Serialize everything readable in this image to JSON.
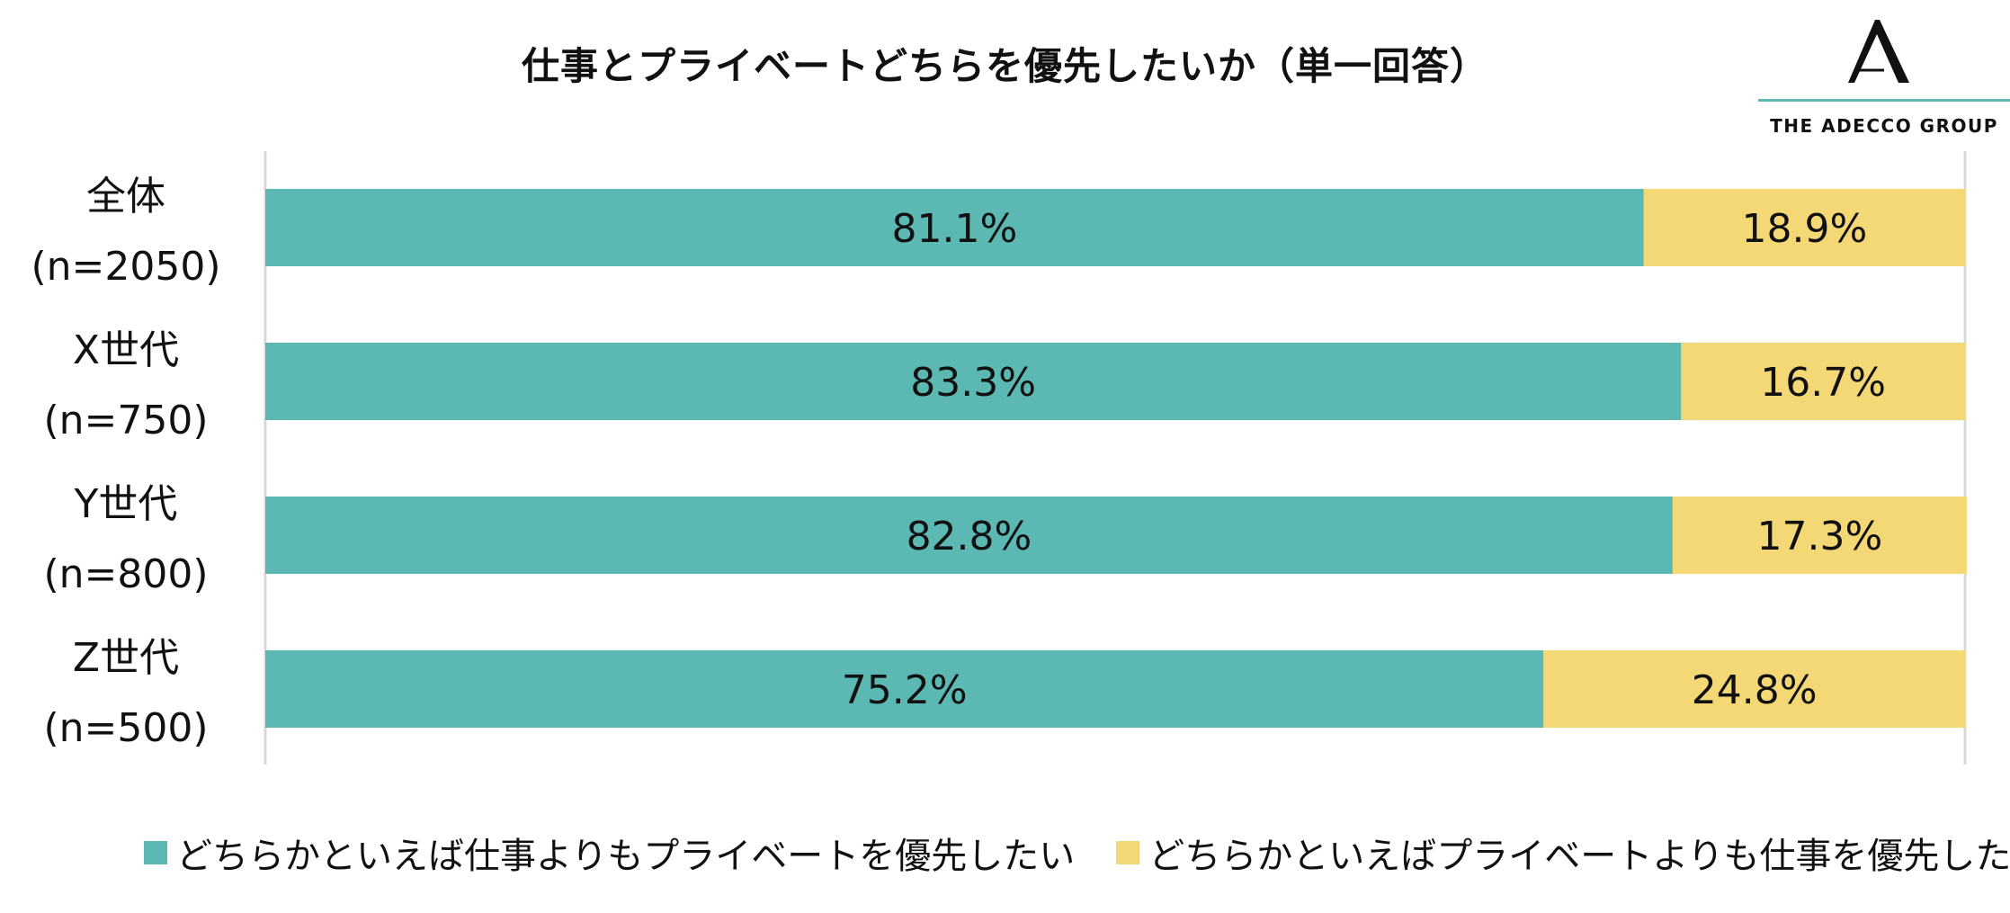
{
  "chart_data": {
    "type": "bar",
    "orientation": "horizontal",
    "stacked": true,
    "title": "仕事とプライベートどちらを優先したいか（単一回答）",
    "categories": [
      "全体",
      "X世代",
      "Y世代",
      "Z世代"
    ],
    "category_sub": [
      "(n=2050)",
      "(n=750)",
      "(n=800)",
      "(n=500)"
    ],
    "series": [
      {
        "name": "どちらかといえば仕事よりもプライベートを優先したい",
        "color": "#5cb8b2",
        "values": [
          81.1,
          83.3,
          82.8,
          75.2
        ],
        "labels": [
          "81.1%",
          "83.3%",
          "82.8%",
          "75.2%"
        ]
      },
      {
        "name": "どちらかといえばプライベートよりも仕事を優先したい",
        "color": "#f5d876",
        "values": [
          18.9,
          16.7,
          17.3,
          24.8
        ],
        "labels": [
          "18.9%",
          "16.7%",
          "17.3%",
          "24.8%"
        ]
      }
    ],
    "xlim": [
      0,
      100
    ],
    "grid": false,
    "legend": "bottom"
  },
  "logo": {
    "text": "THE ADECCO GROUP",
    "mark": "A"
  }
}
